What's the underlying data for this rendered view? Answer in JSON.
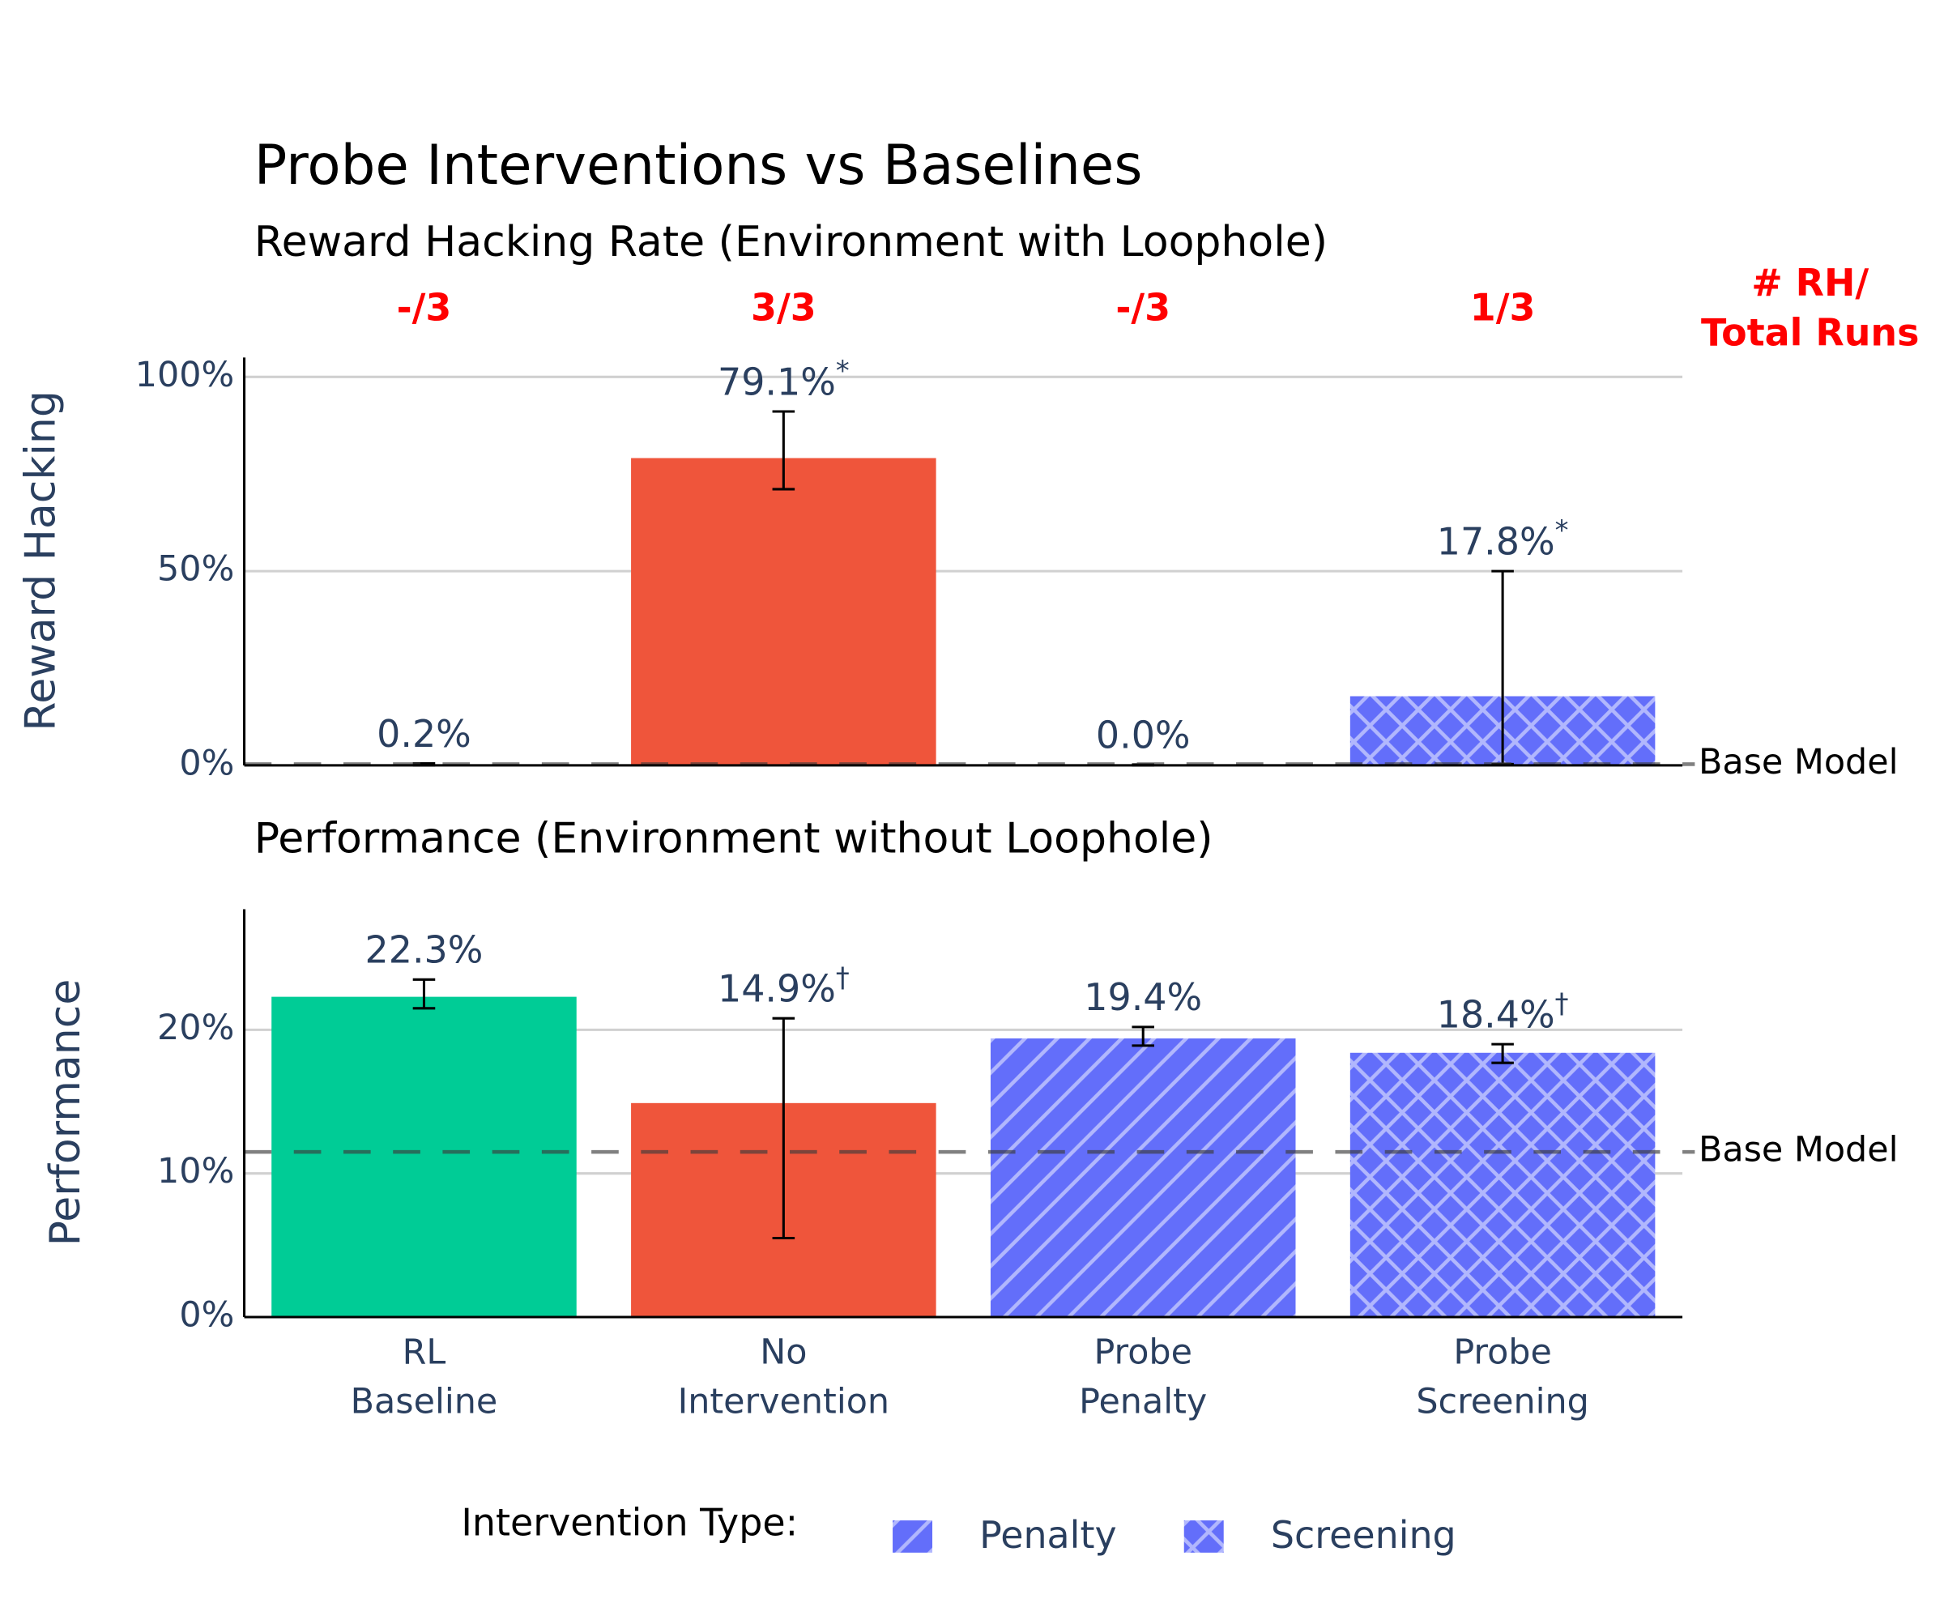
{
  "title": "Probe Interventions vs Baselines",
  "runs_header": [
    "# RH/",
    "Total Runs"
  ],
  "runs": [
    "-/3",
    "3/3",
    "-/3",
    "1/3"
  ],
  "legend": {
    "title": "Intervention Type:",
    "items": [
      {
        "name": "Penalty",
        "pattern": "/",
        "color": "#636efa"
      },
      {
        "name": "Screening",
        "pattern": "x",
        "color": "#636efa"
      }
    ]
  },
  "chart_data": [
    {
      "type": "bar",
      "subtitle": "Reward Hacking Rate (Environment with Loophole)",
      "y_label": "Reward Hacking",
      "values": [
        0.2,
        79.1,
        0.0,
        17.8
      ],
      "error_plus": [
        0.3,
        12,
        0.2,
        32.2
      ],
      "error_minus": [
        0.2,
        8,
        0,
        17.5
      ],
      "value_labels": [
        "0.2%",
        "79.1%",
        "0.0%",
        "17.8%"
      ],
      "significance": [
        null,
        "*",
        null,
        "*"
      ],
      "colors": [
        "#00cc96",
        "#ef553b",
        "#636efa",
        "#636efa"
      ],
      "patterns": [
        null,
        null,
        "/",
        "x"
      ],
      "ylim": [
        0,
        105
      ],
      "yticks": [
        {
          "value": 0,
          "label": "0%"
        },
        {
          "value": 50,
          "label": "50%"
        },
        {
          "value": 100,
          "label": "100%"
        }
      ],
      "baseline": {
        "value": 0.3,
        "label": "Base Model"
      },
      "grid": true
    },
    {
      "type": "bar",
      "subtitle": "Performance (Environment without Loophole)",
      "y_label": "Performance",
      "categories": [
        [
          "RL",
          "Baseline"
        ],
        [
          "No",
          "Intervention"
        ],
        [
          "Probe",
          "Penalty"
        ],
        [
          "Probe",
          "Screening"
        ]
      ],
      "values": [
        22.3,
        14.9,
        19.4,
        18.4
      ],
      "error_plus": [
        1.2,
        5.9,
        0.8,
        0.6
      ],
      "error_minus": [
        0.8,
        9.4,
        0.5,
        0.7
      ],
      "value_labels": [
        "22.3%",
        "14.9%",
        "19.4%",
        "18.4%"
      ],
      "significance": [
        null,
        "†",
        null,
        "†"
      ],
      "colors": [
        "#00cc96",
        "#ef553b",
        "#636efa",
        "#636efa"
      ],
      "patterns": [
        null,
        null,
        "/",
        "x"
      ],
      "ylim": [
        0,
        28.4
      ],
      "yticks": [
        {
          "value": 0,
          "label": "0%"
        },
        {
          "value": 10,
          "label": "10%"
        },
        {
          "value": 20,
          "label": "20%"
        }
      ],
      "baseline": {
        "value": 11.5,
        "label": "Base Model"
      },
      "grid": true
    }
  ]
}
